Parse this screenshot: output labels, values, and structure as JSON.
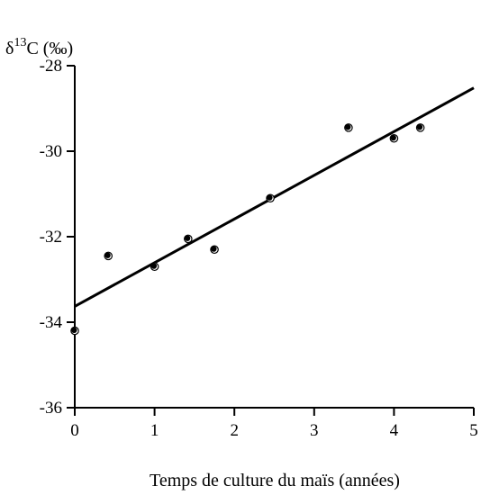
{
  "chart_data": {
    "type": "scatter",
    "title": "",
    "ylabel_main": "δ",
    "ylabel_sup": "13",
    "ylabel_rest": "C (‰)",
    "xlabel": "Temps de culture du maïs (années)",
    "xlim": [
      0,
      5
    ],
    "ylim": [
      -36,
      -28
    ],
    "x_ticks": [
      0,
      1,
      2,
      3,
      4,
      5
    ],
    "x_tick_labels": [
      "0",
      "1",
      "2",
      "3",
      "4",
      "5"
    ],
    "y_ticks": [
      -36,
      -34,
      -32,
      -30,
      -28
    ],
    "y_tick_labels": [
      "-36",
      "-34",
      "-32",
      "-30",
      "-28"
    ],
    "grid": false,
    "legend": "none",
    "points": [
      {
        "x": 0.0,
        "y": -34.2
      },
      {
        "x": 0.42,
        "y": -32.45
      },
      {
        "x": 1.0,
        "y": -32.7
      },
      {
        "x": 1.42,
        "y": -32.05
      },
      {
        "x": 1.75,
        "y": -32.3
      },
      {
        "x": 2.45,
        "y": -31.1
      },
      {
        "x": 3.43,
        "y": -29.45
      },
      {
        "x": 4.0,
        "y": -29.7
      },
      {
        "x": 4.33,
        "y": -29.45
      }
    ],
    "fit_line": {
      "x": [
        0,
        5
      ],
      "y": [
        -33.63,
        -28.52
      ]
    },
    "colors": {
      "marks": "#000000",
      "line": "#000000"
    }
  }
}
